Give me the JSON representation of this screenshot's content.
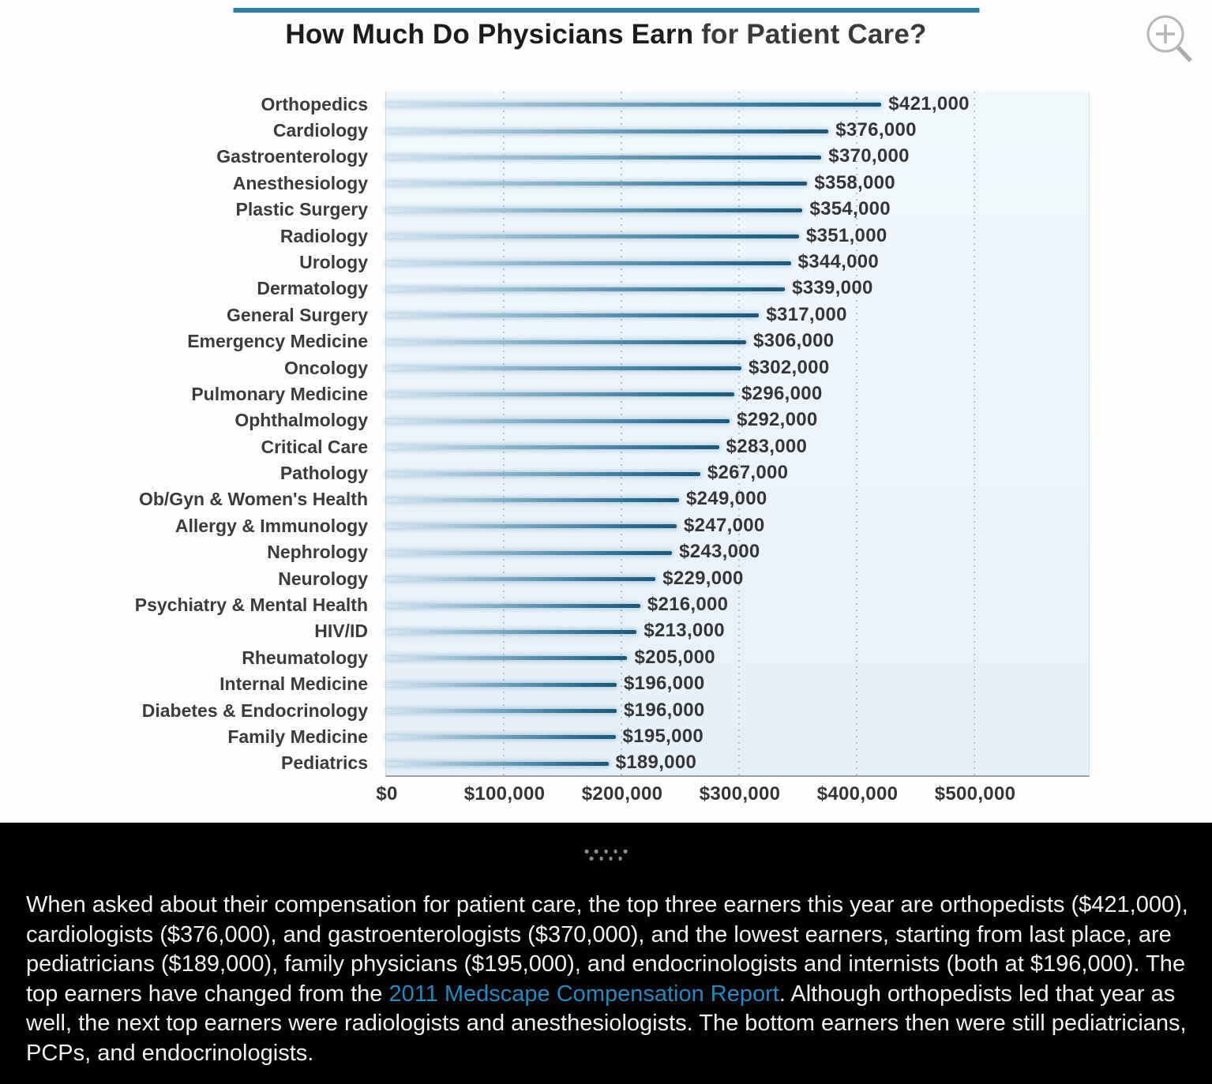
{
  "title": {
    "bold": "How Much Do Physicians Earn",
    "regular": " for Patient Care?"
  },
  "icons": {
    "zoom": "magnifier-plus-icon"
  },
  "colors": {
    "title_rule": "#2d7ca6",
    "bar_dark": "#1c5878",
    "bar_light": "#d7e7f1",
    "plot_background": "#ecf4fa",
    "link": "#1e8bc3",
    "footer_background": "#000000"
  },
  "chart_data": {
    "type": "bar",
    "orientation": "horizontal",
    "title": "How Much Do Physicians Earn for Patient Care?",
    "categories": [
      "Orthopedics",
      "Cardiology",
      "Gastroenterology",
      "Anesthesiology",
      "Plastic Surgery",
      "Radiology",
      "Urology",
      "Dermatology",
      "General Surgery",
      "Emergency Medicine",
      "Oncology",
      "Pulmonary Medicine",
      "Ophthalmology",
      "Critical Care",
      "Pathology",
      "Ob/Gyn & Women's Health",
      "Allergy & Immunology",
      "Nephrology",
      "Neurology",
      "Psychiatry & Mental Health",
      "HIV/ID",
      "Rheumatology",
      "Internal Medicine",
      "Diabetes & Endocrinology",
      "Family Medicine",
      "Pediatrics"
    ],
    "values": [
      421000,
      376000,
      370000,
      358000,
      354000,
      351000,
      344000,
      339000,
      317000,
      306000,
      302000,
      296000,
      292000,
      283000,
      267000,
      249000,
      247000,
      243000,
      229000,
      216000,
      213000,
      205000,
      196000,
      196000,
      195000,
      189000
    ],
    "value_labels": [
      "$421,000",
      "$376,000",
      "$370,000",
      "$358,000",
      "$354,000",
      "$351,000",
      "$344,000",
      "$339,000",
      "$317,000",
      "$306,000",
      "$302,000",
      "$296,000",
      "$292,000",
      "$283,000",
      "$267,000",
      "$249,000",
      "$247,000",
      "$243,000",
      "$229,000",
      "$216,000",
      "$213,000",
      "$205,000",
      "$196,000",
      "$196,000",
      "$195,000",
      "$189,000"
    ],
    "x_ticks": [
      "$0",
      "$100,000",
      "$200,000",
      "$300,000",
      "$400,000",
      "$500,000"
    ],
    "xlim": [
      0,
      600000
    ],
    "grid": "vertical-dotted",
    "legend": "none"
  },
  "footer": {
    "text_before": "When asked about their compensation for patient care, the top three earners this year are orthopedists ($421,000), cardiologists ($376,000), and gastroenterologists ($370,000), and the lowest earners, starting from last place, are pediatricians ($189,000), family physicians ($195,000), and endocrinologists and internists (both at $196,000). The top earners have changed from the ",
    "link_text": "2011 Medscape Compensation Report",
    "text_after": ". Although orthopedists led that year as well, the next top earners were radiologists and anesthesiologists. The bottom earners then were still pediatricians, PCPs, and endocrinologists."
  }
}
